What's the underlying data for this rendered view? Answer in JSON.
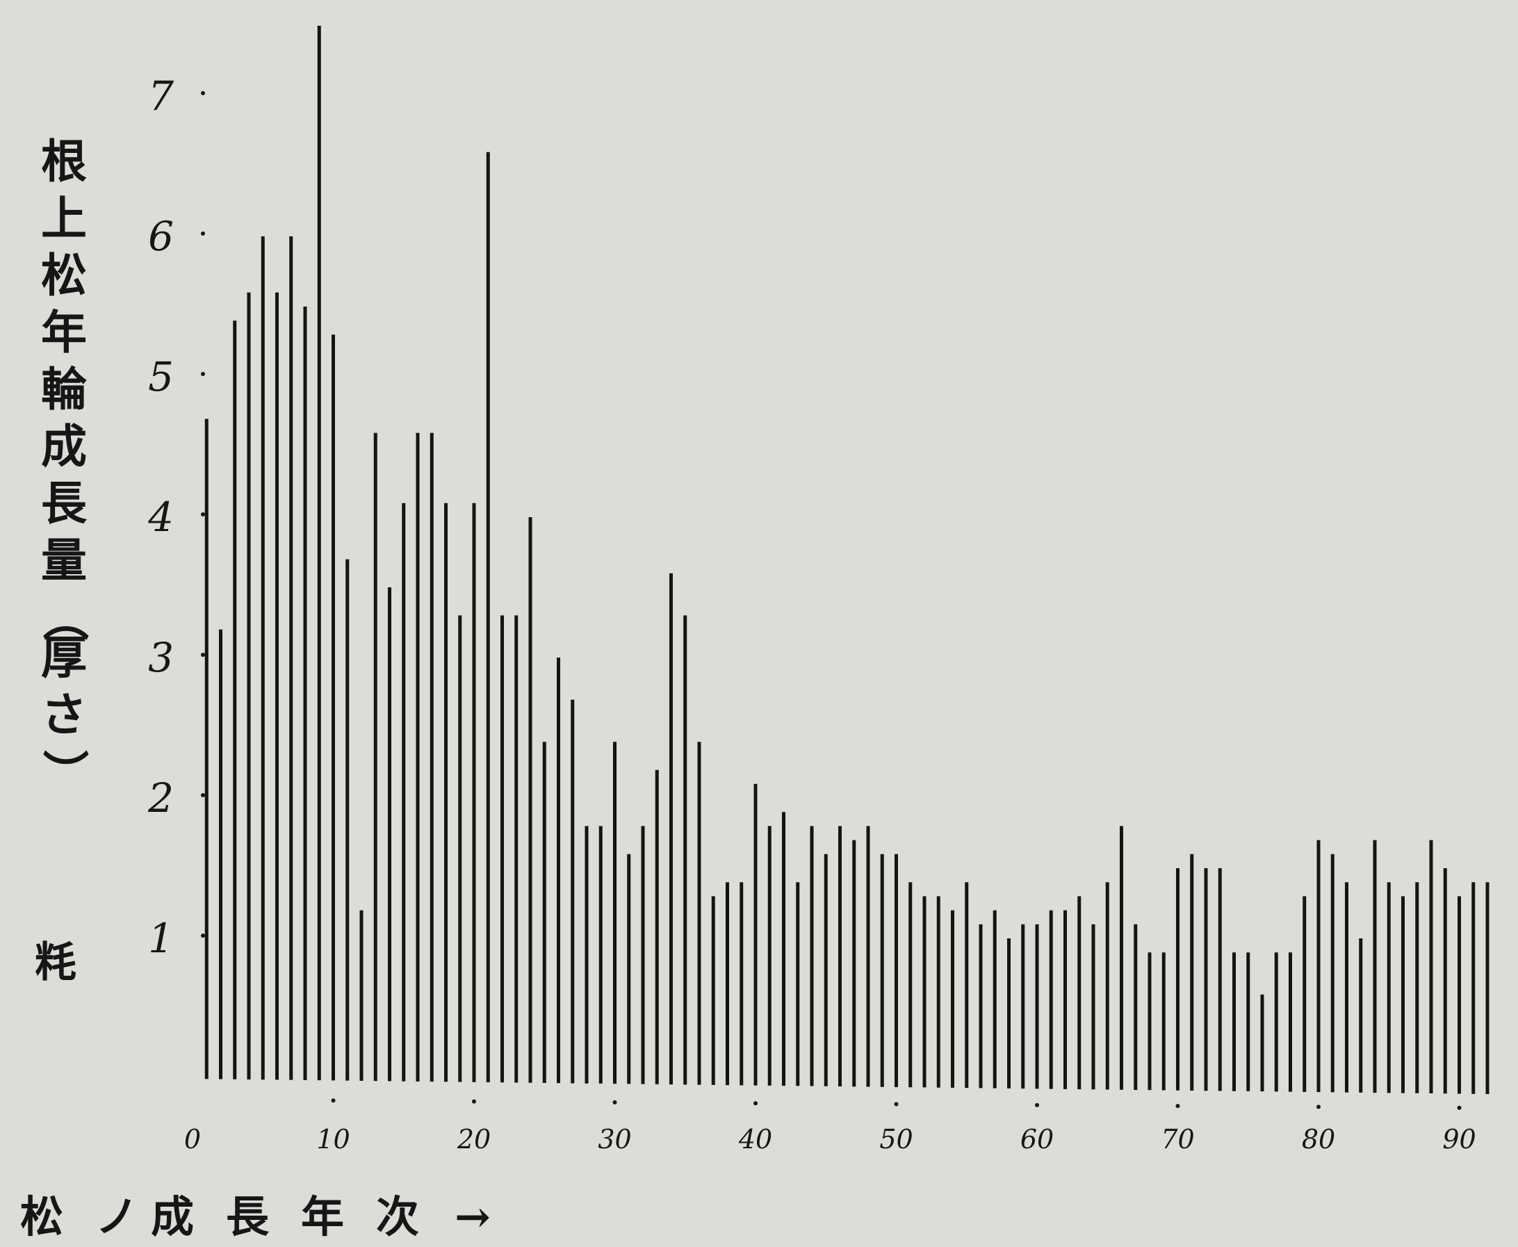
{
  "chart_data": {
    "type": "bar",
    "ylabel": "根上松年輪成長量（厚さ）",
    "y_unit": "粍",
    "xlabel": "松ノ成長年次 →",
    "ylim": [
      0,
      7.5
    ],
    "xlim": [
      0,
      92
    ],
    "y_ticks": [
      "1",
      "2",
      "3",
      "4",
      "5",
      "6",
      "7"
    ],
    "x_ticks": [
      "0",
      "10",
      "20",
      "30",
      "40",
      "50",
      "60",
      "70",
      "80",
      "90"
    ],
    "x": [
      1,
      2,
      3,
      4,
      5,
      6,
      7,
      8,
      9,
      10,
      11,
      12,
      13,
      14,
      15,
      16,
      17,
      18,
      19,
      20,
      21,
      22,
      23,
      24,
      25,
      26,
      27,
      28,
      29,
      30,
      31,
      32,
      33,
      34,
      35,
      36,
      37,
      38,
      39,
      40,
      41,
      42,
      43,
      44,
      45,
      46,
      47,
      48,
      49,
      50,
      51,
      52,
      53,
      54,
      55,
      56,
      57,
      58,
      59,
      60,
      61,
      62,
      63,
      64,
      65,
      66,
      67,
      68,
      69,
      70,
      71,
      72,
      73,
      74,
      75,
      76,
      77,
      78,
      79,
      80,
      81,
      82,
      83,
      84,
      85,
      86,
      87,
      88,
      89,
      90,
      91,
      92
    ],
    "values": [
      4.7,
      3.2,
      5.4,
      5.6,
      6.0,
      5.6,
      6.0,
      5.5,
      7.5,
      5.3,
      3.7,
      1.2,
      4.6,
      3.5,
      4.1,
      4.6,
      4.6,
      4.1,
      3.3,
      4.1,
      6.6,
      3.3,
      3.3,
      4.0,
      2.4,
      3.0,
      2.7,
      1.8,
      1.8,
      2.4,
      1.6,
      1.8,
      2.2,
      3.6,
      3.3,
      2.4,
      1.3,
      1.4,
      1.4,
      2.1,
      1.8,
      1.9,
      1.4,
      1.8,
      1.6,
      1.8,
      1.7,
      1.8,
      1.6,
      1.6,
      1.4,
      1.3,
      1.3,
      1.2,
      1.4,
      1.1,
      1.2,
      1.0,
      1.1,
      1.1,
      1.2,
      1.2,
      1.3,
      1.1,
      1.4,
      1.8,
      1.1,
      0.9,
      0.9,
      1.5,
      1.6,
      1.5,
      1.5,
      0.9,
      0.9,
      0.6,
      0.9,
      0.9,
      1.3,
      1.7,
      1.6,
      1.4,
      1.0,
      1.7,
      1.4,
      1.3,
      1.4,
      1.7,
      1.5,
      1.3,
      1.4,
      1.4
    ]
  }
}
